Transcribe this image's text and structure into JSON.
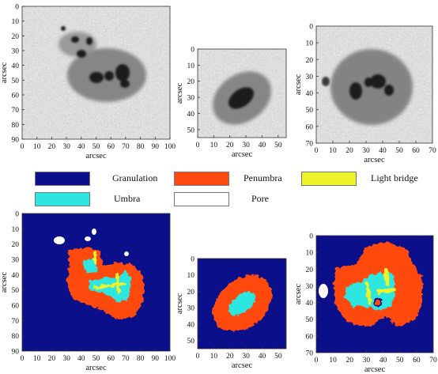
{
  "legend": {
    "items": [
      {
        "label": "Granulation",
        "color": "#0c0f8a"
      },
      {
        "label": "Penumbra",
        "color": "#ff4a10"
      },
      {
        "label": "Light bridge",
        "color": "#eef22a"
      },
      {
        "label": "Umbra",
        "color": "#2ee6e0"
      },
      {
        "label": "Pore",
        "color": "#ffffff"
      }
    ]
  },
  "panels": [
    {
      "xlabel": "arcsec",
      "ylabel": "arcsec",
      "xlim": [
        0,
        100
      ],
      "ylim": [
        0,
        90
      ],
      "xticks": [
        0,
        10,
        20,
        30,
        40,
        50,
        60,
        70,
        80,
        90,
        100
      ],
      "yticks": [
        0,
        10,
        20,
        30,
        40,
        50,
        60,
        70,
        80,
        90
      ],
      "image": "sunspot intensity image"
    },
    {
      "xlabel": "arcsec",
      "ylabel": "arcsec",
      "xlim": [
        0,
        55
      ],
      "ylim": [
        0,
        55
      ],
      "xticks": [
        0,
        10,
        20,
        30,
        40,
        50
      ],
      "yticks": [
        0,
        10,
        20,
        30,
        40,
        50
      ],
      "image": "sunspot intensity image"
    },
    {
      "xlabel": "arcsec",
      "ylabel": "arcsec",
      "xlim": [
        0,
        70
      ],
      "ylim": [
        0,
        70
      ],
      "xticks": [
        0,
        10,
        20,
        30,
        40,
        50,
        60,
        70
      ],
      "yticks": [
        0,
        10,
        20,
        30,
        40,
        50,
        60,
        70
      ],
      "image": "sunspot intensity image"
    },
    {
      "xlabel": "arcsec",
      "ylabel": "arcsec",
      "xlim": [
        0,
        100
      ],
      "ylim": [
        0,
        90
      ],
      "xticks": [
        0,
        10,
        20,
        30,
        40,
        50,
        60,
        70,
        80,
        90,
        100
      ],
      "yticks": [
        0,
        10,
        20,
        30,
        40,
        50,
        60,
        70,
        80,
        90
      ],
      "image": "segmentation map"
    },
    {
      "xlabel": "arcsec",
      "ylabel": "arcsec",
      "xlim": [
        0,
        55
      ],
      "ylim": [
        0,
        55
      ],
      "xticks": [
        0,
        10,
        20,
        30,
        40,
        50
      ],
      "yticks": [
        0,
        10,
        20,
        30,
        40,
        50
      ],
      "image": "segmentation map"
    },
    {
      "xlabel": "arcsec",
      "ylabel": "arcsec",
      "xlim": [
        0,
        70
      ],
      "ylim": [
        0,
        70
      ],
      "xticks": [
        0,
        10,
        20,
        30,
        40,
        50,
        60,
        70
      ],
      "yticks": [
        0,
        10,
        20,
        30,
        40,
        50,
        60,
        70
      ],
      "image": "segmentation map"
    }
  ]
}
